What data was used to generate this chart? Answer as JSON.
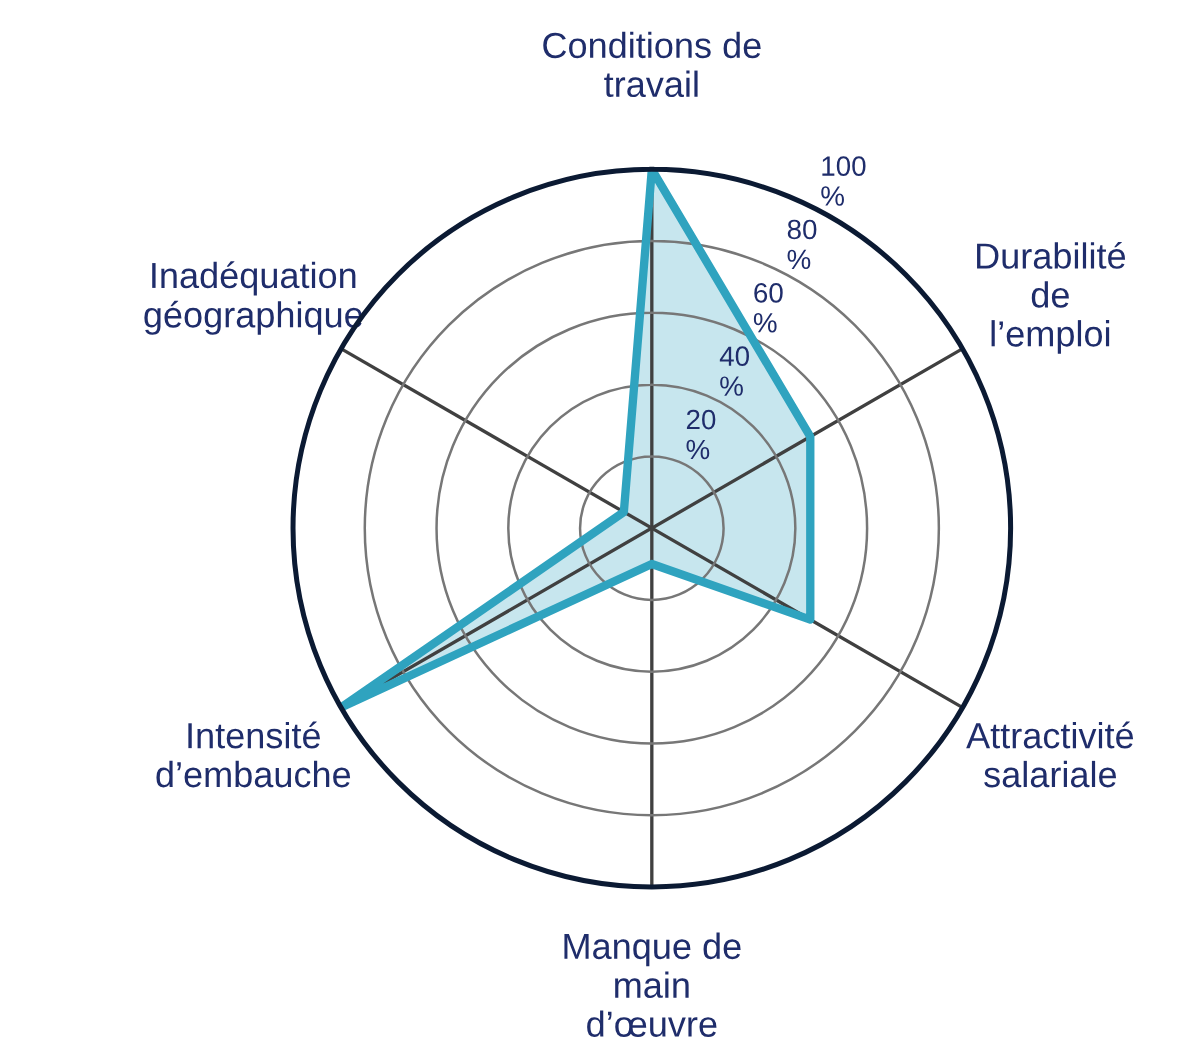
{
  "chart_data": {
    "type": "radar",
    "categories": [
      "Conditions de\ntravail",
      "Durabilité\nde\nl’emploi",
      "Attractivité\nsalariale",
      "Manque de\nmain\nd’œuvre",
      "Intensité\nd’embauche",
      "Inadéquation\ngéographique"
    ],
    "series": [
      {
        "color": "#2fa3bf",
        "values": [
          100,
          51,
          51,
          10,
          100,
          9
        ]
      }
    ],
    "ylim": [
      0,
      100
    ],
    "yticks": [
      {
        "value": 20,
        "label": "20 %"
      },
      {
        "value": 40,
        "label": "40 %"
      },
      {
        "value": 60,
        "label": "60 %"
      },
      {
        "value": 80,
        "label": "80 %"
      },
      {
        "value": 100,
        "label": "100 %"
      }
    ],
    "grid": true,
    "marker": "none",
    "line_style": "solid"
  }
}
